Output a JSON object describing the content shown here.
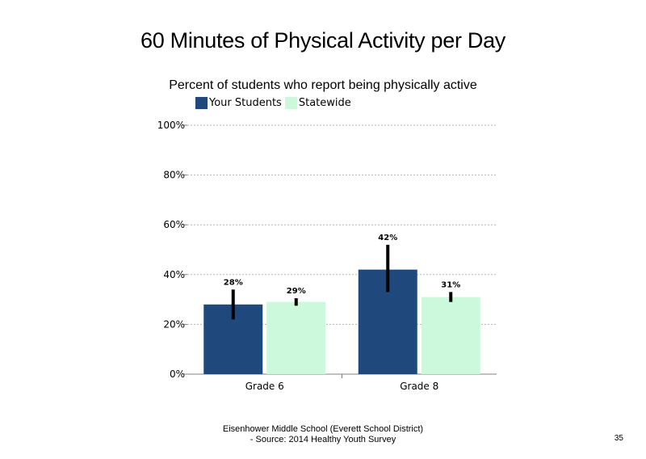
{
  "chart_data": {
    "type": "bar",
    "title": "60 Minutes of Physical Activity per Day",
    "subtitle": "Percent of students  who report being physically active",
    "categories": [
      "Grade 6",
      "Grade 8"
    ],
    "series": [
      {
        "name": "Your Students",
        "color": "#1f497d",
        "values": [
          28,
          42
        ],
        "error_low": [
          22,
          33
        ],
        "error_high": [
          34,
          52
        ],
        "labels": [
          "28%",
          "42%"
        ]
      },
      {
        "name": "Statewide",
        "color": "#ccf9dc",
        "values": [
          29,
          31
        ],
        "error_low": [
          27.5,
          29
        ],
        "error_high": [
          30.5,
          33
        ],
        "labels": [
          "29%",
          "31%"
        ]
      }
    ],
    "ylim": [
      0,
      100
    ],
    "yticks": [
      0,
      20,
      40,
      60,
      80,
      100
    ],
    "ytick_labels": [
      "0%",
      "20%",
      "40%",
      "60%",
      "80%",
      "100%"
    ],
    "grid": true,
    "legend": "top"
  },
  "footer": {
    "line1": "Eisenhower Middle School (Everett School District)",
    "line2": "- Source: 2014 Healthy  Youth Survey"
  },
  "page_number": "35"
}
